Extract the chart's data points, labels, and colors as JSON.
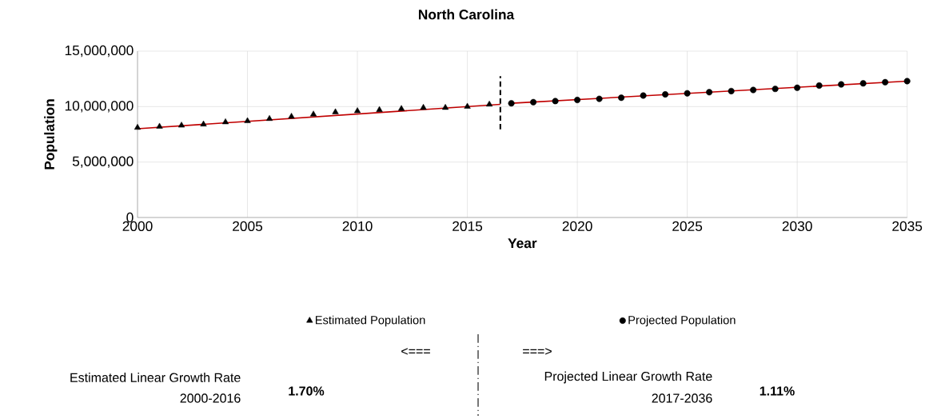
{
  "chart_data": {
    "type": "scatter",
    "title": "North Carolina",
    "xlabel": "Year",
    "ylabel": "Population",
    "xlim": [
      2000,
      2035
    ],
    "xticks": [
      2000,
      2005,
      2010,
      2015,
      2020,
      2025,
      2030,
      2035
    ],
    "ylim": [
      0,
      15000000
    ],
    "yticks": [
      0,
      {
        "value": 5000000,
        "label": "5,000,000"
      },
      {
        "value": 10000000,
        "label": "10,000,000"
      },
      {
        "value": 15000000,
        "label": "15,000,000"
      }
    ],
    "grid": true,
    "legend": "bottom",
    "series": [
      {
        "name": "Estimated Population",
        "marker": "triangle",
        "color": "#000000",
        "x": [
          2000,
          2001,
          2002,
          2003,
          2004,
          2005,
          2006,
          2007,
          2008,
          2009,
          2010,
          2011,
          2012,
          2013,
          2014,
          2015,
          2016
        ],
        "values": [
          8100000,
          8200000,
          8300000,
          8400000,
          8600000,
          8700000,
          8900000,
          9100000,
          9300000,
          9500000,
          9600000,
          9700000,
          9800000,
          9900000,
          9900000,
          10000000,
          10200000
        ]
      },
      {
        "name": "Projected Population",
        "marker": "circle",
        "color": "#000000",
        "x": [
          2017,
          2018,
          2019,
          2020,
          2021,
          2022,
          2023,
          2024,
          2025,
          2026,
          2027,
          2028,
          2029,
          2030,
          2031,
          2032,
          2033,
          2034,
          2035
        ],
        "values": [
          10300000,
          10400000,
          10500000,
          10600000,
          10700000,
          10800000,
          11000000,
          11100000,
          11200000,
          11300000,
          11400000,
          11500000,
          11600000,
          11700000,
          11900000,
          12000000,
          12100000,
          12200000,
          12300000
        ]
      },
      {
        "type": "line",
        "marker": "none",
        "color": "#c00000",
        "x": [
          2000,
          2016.5
        ],
        "values": [
          8000000,
          10200000
        ]
      },
      {
        "type": "line",
        "marker": "none",
        "color": "#c00000",
        "x": [
          2017,
          2035
        ],
        "values": [
          10300000,
          12300000
        ]
      }
    ],
    "ref_lines": [
      {
        "axis": "x",
        "value": 2016.5,
        "line_style": "dashed",
        "color": "#000000"
      }
    ],
    "annotations": [
      "<===",
      "===>",
      "Estimated Linear Growth Rate",
      "2000-2016",
      "1.70%",
      "Projected Linear Growth Rate",
      "2017-2036",
      "1.11%"
    ]
  }
}
